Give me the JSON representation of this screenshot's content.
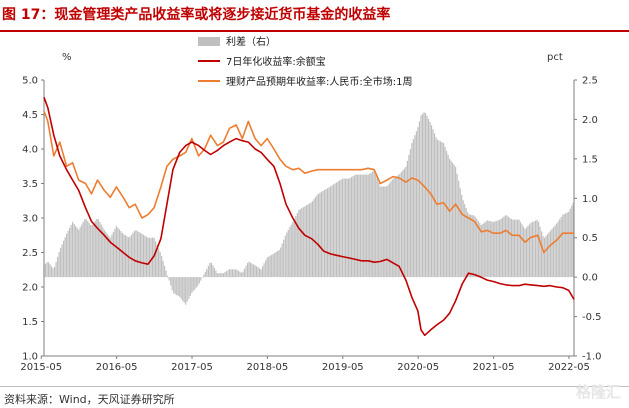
{
  "title": "图 17：现金管理类产品收益率或将逐步接近货币基金的收益率",
  "source": "资料来源：Wind，天风证券研究所",
  "watermark": "格隆汇",
  "colors": {
    "spread": "#bfbfbf",
    "yuebao": "#c00000",
    "wmp": "#ed7d31",
    "title": "#c00000"
  },
  "chart_data": {
    "type": "line",
    "left_axis_unit": "%",
    "right_axis_unit": "pct",
    "y_left": {
      "min": 1.0,
      "max": 5.0,
      "ticks": [
        "1.0",
        "1.5",
        "2.0",
        "2.5",
        "3.0",
        "3.5",
        "4.0",
        "4.5",
        "5.0"
      ]
    },
    "y_right": {
      "min": -1.0,
      "max": 2.5,
      "ticks": [
        "-1.0",
        "-0.5",
        "0.0",
        "0.5",
        "1.0",
        "1.5",
        "2.0",
        "2.5"
      ]
    },
    "x_ticks": [
      "2015-05",
      "2016-05",
      "2017-05",
      "2018-05",
      "2019-05",
      "2020-05",
      "2021-05",
      "2022-05"
    ],
    "legend": [
      "利差（右）",
      "7日年化收益率:余额宝",
      "理财产品预期年收益率:人民币:全市场:1周"
    ],
    "series": [
      {
        "name": "7日年化收益率:余额宝",
        "axis": "left",
        "points": [
          [
            2015.37,
            4.75
          ],
          [
            2015.42,
            4.6
          ],
          [
            2015.5,
            4.2
          ],
          [
            2015.58,
            3.9
          ],
          [
            2015.67,
            3.7
          ],
          [
            2015.75,
            3.55
          ],
          [
            2015.83,
            3.4
          ],
          [
            2015.92,
            3.15
          ],
          [
            2016.0,
            2.95
          ],
          [
            2016.08,
            2.85
          ],
          [
            2016.17,
            2.75
          ],
          [
            2016.25,
            2.65
          ],
          [
            2016.33,
            2.58
          ],
          [
            2016.42,
            2.5
          ],
          [
            2016.5,
            2.43
          ],
          [
            2016.58,
            2.38
          ],
          [
            2016.67,
            2.35
          ],
          [
            2016.75,
            2.33
          ],
          [
            2016.83,
            2.45
          ],
          [
            2016.92,
            2.7
          ],
          [
            2017.0,
            3.2
          ],
          [
            2017.08,
            3.7
          ],
          [
            2017.17,
            3.95
          ],
          [
            2017.25,
            4.05
          ],
          [
            2017.33,
            4.1
          ],
          [
            2017.42,
            4.05
          ],
          [
            2017.5,
            3.98
          ],
          [
            2017.58,
            3.92
          ],
          [
            2017.67,
            3.98
          ],
          [
            2017.75,
            4.05
          ],
          [
            2017.83,
            4.1
          ],
          [
            2017.92,
            4.15
          ],
          [
            2018.0,
            4.12
          ],
          [
            2018.08,
            4.1
          ],
          [
            2018.17,
            4.0
          ],
          [
            2018.25,
            3.95
          ],
          [
            2018.33,
            3.85
          ],
          [
            2018.42,
            3.75
          ],
          [
            2018.5,
            3.5
          ],
          [
            2018.58,
            3.2
          ],
          [
            2018.67,
            3.0
          ],
          [
            2018.75,
            2.85
          ],
          [
            2018.83,
            2.75
          ],
          [
            2018.92,
            2.7
          ],
          [
            2019.0,
            2.62
          ],
          [
            2019.08,
            2.52
          ],
          [
            2019.17,
            2.48
          ],
          [
            2019.25,
            2.46
          ],
          [
            2019.33,
            2.44
          ],
          [
            2019.42,
            2.42
          ],
          [
            2019.5,
            2.4
          ],
          [
            2019.58,
            2.38
          ],
          [
            2019.67,
            2.38
          ],
          [
            2019.75,
            2.36
          ],
          [
            2019.83,
            2.37
          ],
          [
            2019.92,
            2.4
          ],
          [
            2020.0,
            2.35
          ],
          [
            2020.08,
            2.3
          ],
          [
            2020.17,
            2.1
          ],
          [
            2020.25,
            1.85
          ],
          [
            2020.33,
            1.65
          ],
          [
            2020.37,
            1.38
          ],
          [
            2020.42,
            1.3
          ],
          [
            2020.5,
            1.38
          ],
          [
            2020.58,
            1.45
          ],
          [
            2020.67,
            1.52
          ],
          [
            2020.75,
            1.62
          ],
          [
            2020.83,
            1.8
          ],
          [
            2020.92,
            2.05
          ],
          [
            2021.0,
            2.2
          ],
          [
            2021.08,
            2.18
          ],
          [
            2021.17,
            2.14
          ],
          [
            2021.25,
            2.1
          ],
          [
            2021.33,
            2.08
          ],
          [
            2021.42,
            2.05
          ],
          [
            2021.5,
            2.03
          ],
          [
            2021.58,
            2.02
          ],
          [
            2021.67,
            2.02
          ],
          [
            2021.75,
            2.04
          ],
          [
            2021.83,
            2.03
          ],
          [
            2021.92,
            2.02
          ],
          [
            2022.0,
            2.01
          ],
          [
            2022.08,
            2.02
          ],
          [
            2022.17,
            2.0
          ],
          [
            2022.25,
            1.99
          ],
          [
            2022.33,
            1.95
          ],
          [
            2022.4,
            1.82
          ]
        ]
      },
      {
        "name": "理财产品预期年收益率:人民币:全市场:1周",
        "axis": "left",
        "points": [
          [
            2015.37,
            4.55
          ],
          [
            2015.42,
            4.4
          ],
          [
            2015.5,
            3.9
          ],
          [
            2015.58,
            4.1
          ],
          [
            2015.67,
            3.75
          ],
          [
            2015.75,
            3.8
          ],
          [
            2015.83,
            3.55
          ],
          [
            2015.92,
            3.5
          ],
          [
            2016.0,
            3.35
          ],
          [
            2016.08,
            3.55
          ],
          [
            2016.17,
            3.4
          ],
          [
            2016.25,
            3.3
          ],
          [
            2016.33,
            3.45
          ],
          [
            2016.42,
            3.3
          ],
          [
            2016.5,
            3.15
          ],
          [
            2016.58,
            3.2
          ],
          [
            2016.67,
            3.0
          ],
          [
            2016.75,
            3.05
          ],
          [
            2016.83,
            3.15
          ],
          [
            2016.92,
            3.45
          ],
          [
            2017.0,
            3.75
          ],
          [
            2017.08,
            3.85
          ],
          [
            2017.17,
            3.9
          ],
          [
            2017.25,
            3.95
          ],
          [
            2017.33,
            4.15
          ],
          [
            2017.42,
            3.9
          ],
          [
            2017.5,
            4.0
          ],
          [
            2017.58,
            4.2
          ],
          [
            2017.67,
            4.05
          ],
          [
            2017.75,
            4.1
          ],
          [
            2017.83,
            4.3
          ],
          [
            2017.92,
            4.35
          ],
          [
            2018.0,
            4.15
          ],
          [
            2018.08,
            4.4
          ],
          [
            2018.17,
            4.15
          ],
          [
            2018.25,
            4.05
          ],
          [
            2018.33,
            4.15
          ],
          [
            2018.42,
            4.0
          ],
          [
            2018.5,
            3.85
          ],
          [
            2018.58,
            3.75
          ],
          [
            2018.67,
            3.7
          ],
          [
            2018.75,
            3.72
          ],
          [
            2018.83,
            3.65
          ],
          [
            2018.92,
            3.68
          ],
          [
            2019.0,
            3.7
          ],
          [
            2019.08,
            3.7
          ],
          [
            2019.17,
            3.7
          ],
          [
            2019.25,
            3.7
          ],
          [
            2019.33,
            3.7
          ],
          [
            2019.42,
            3.7
          ],
          [
            2019.5,
            3.7
          ],
          [
            2019.58,
            3.7
          ],
          [
            2019.67,
            3.72
          ],
          [
            2019.75,
            3.7
          ],
          [
            2019.83,
            3.5
          ],
          [
            2019.92,
            3.55
          ],
          [
            2020.0,
            3.6
          ],
          [
            2020.08,
            3.58
          ],
          [
            2020.17,
            3.52
          ],
          [
            2020.25,
            3.58
          ],
          [
            2020.33,
            3.55
          ],
          [
            2020.42,
            3.45
          ],
          [
            2020.5,
            3.35
          ],
          [
            2020.58,
            3.2
          ],
          [
            2020.67,
            3.22
          ],
          [
            2020.75,
            3.1
          ],
          [
            2020.83,
            3.2
          ],
          [
            2020.92,
            3.05
          ],
          [
            2021.0,
            3.0
          ],
          [
            2021.08,
            2.95
          ],
          [
            2021.17,
            2.8
          ],
          [
            2021.25,
            2.82
          ],
          [
            2021.33,
            2.78
          ],
          [
            2021.42,
            2.78
          ],
          [
            2021.5,
            2.82
          ],
          [
            2021.58,
            2.75
          ],
          [
            2021.67,
            2.75
          ],
          [
            2021.75,
            2.65
          ],
          [
            2021.83,
            2.72
          ],
          [
            2021.92,
            2.75
          ],
          [
            2022.0,
            2.5
          ],
          [
            2022.08,
            2.6
          ],
          [
            2022.17,
            2.68
          ],
          [
            2022.25,
            2.78
          ],
          [
            2022.33,
            2.78
          ],
          [
            2022.4,
            2.78
          ]
        ]
      },
      {
        "name": "利差（右）",
        "type": "bar",
        "axis": "right",
        "points": [
          [
            2015.37,
            0.15
          ],
          [
            2015.42,
            0.2
          ],
          [
            2015.5,
            0.1
          ],
          [
            2015.58,
            0.35
          ],
          [
            2015.67,
            0.55
          ],
          [
            2015.75,
            0.7
          ],
          [
            2015.83,
            0.6
          ],
          [
            2015.92,
            0.75
          ],
          [
            2016.0,
            0.65
          ],
          [
            2016.08,
            0.75
          ],
          [
            2016.17,
            0.6
          ],
          [
            2016.25,
            0.5
          ],
          [
            2016.33,
            0.65
          ],
          [
            2016.42,
            0.55
          ],
          [
            2016.5,
            0.5
          ],
          [
            2016.58,
            0.6
          ],
          [
            2016.67,
            0.55
          ],
          [
            2016.75,
            0.5
          ],
          [
            2016.83,
            0.5
          ],
          [
            2016.92,
            0.3
          ],
          [
            2017.0,
            0.05
          ],
          [
            2017.08,
            -0.2
          ],
          [
            2017.17,
            -0.25
          ],
          [
            2017.25,
            -0.35
          ],
          [
            2017.33,
            -0.2
          ],
          [
            2017.42,
            -0.1
          ],
          [
            2017.5,
            0.05
          ],
          [
            2017.58,
            0.2
          ],
          [
            2017.67,
            0.05
          ],
          [
            2017.75,
            0.05
          ],
          [
            2017.83,
            0.1
          ],
          [
            2017.92,
            0.1
          ],
          [
            2018.0,
            0.05
          ],
          [
            2018.08,
            0.2
          ],
          [
            2018.17,
            0.15
          ],
          [
            2018.25,
            0.1
          ],
          [
            2018.33,
            0.25
          ],
          [
            2018.42,
            0.3
          ],
          [
            2018.5,
            0.35
          ],
          [
            2018.58,
            0.55
          ],
          [
            2018.67,
            0.7
          ],
          [
            2018.75,
            0.85
          ],
          [
            2018.83,
            0.9
          ],
          [
            2018.92,
            0.95
          ],
          [
            2019.0,
            1.05
          ],
          [
            2019.08,
            1.1
          ],
          [
            2019.17,
            1.15
          ],
          [
            2019.25,
            1.2
          ],
          [
            2019.33,
            1.25
          ],
          [
            2019.42,
            1.25
          ],
          [
            2019.5,
            1.3
          ],
          [
            2019.58,
            1.3
          ],
          [
            2019.67,
            1.3
          ],
          [
            2019.75,
            1.35
          ],
          [
            2019.83,
            1.15
          ],
          [
            2019.92,
            1.15
          ],
          [
            2020.0,
            1.25
          ],
          [
            2020.08,
            1.3
          ],
          [
            2020.17,
            1.4
          ],
          [
            2020.25,
            1.7
          ],
          [
            2020.33,
            1.9
          ],
          [
            2020.37,
            2.05
          ],
          [
            2020.42,
            2.1
          ],
          [
            2020.5,
            1.95
          ],
          [
            2020.58,
            1.75
          ],
          [
            2020.67,
            1.7
          ],
          [
            2020.75,
            1.5
          ],
          [
            2020.83,
            1.4
          ],
          [
            2020.92,
            1.0
          ],
          [
            2021.0,
            0.8
          ],
          [
            2021.08,
            0.78
          ],
          [
            2021.17,
            0.66
          ],
          [
            2021.25,
            0.72
          ],
          [
            2021.33,
            0.7
          ],
          [
            2021.42,
            0.73
          ],
          [
            2021.5,
            0.79
          ],
          [
            2021.58,
            0.73
          ],
          [
            2021.67,
            0.73
          ],
          [
            2021.75,
            0.61
          ],
          [
            2021.83,
            0.69
          ],
          [
            2021.92,
            0.73
          ],
          [
            2022.0,
            0.49
          ],
          [
            2022.08,
            0.58
          ],
          [
            2022.17,
            0.68
          ],
          [
            2022.25,
            0.79
          ],
          [
            2022.33,
            0.83
          ],
          [
            2022.4,
            0.96
          ]
        ]
      }
    ]
  }
}
